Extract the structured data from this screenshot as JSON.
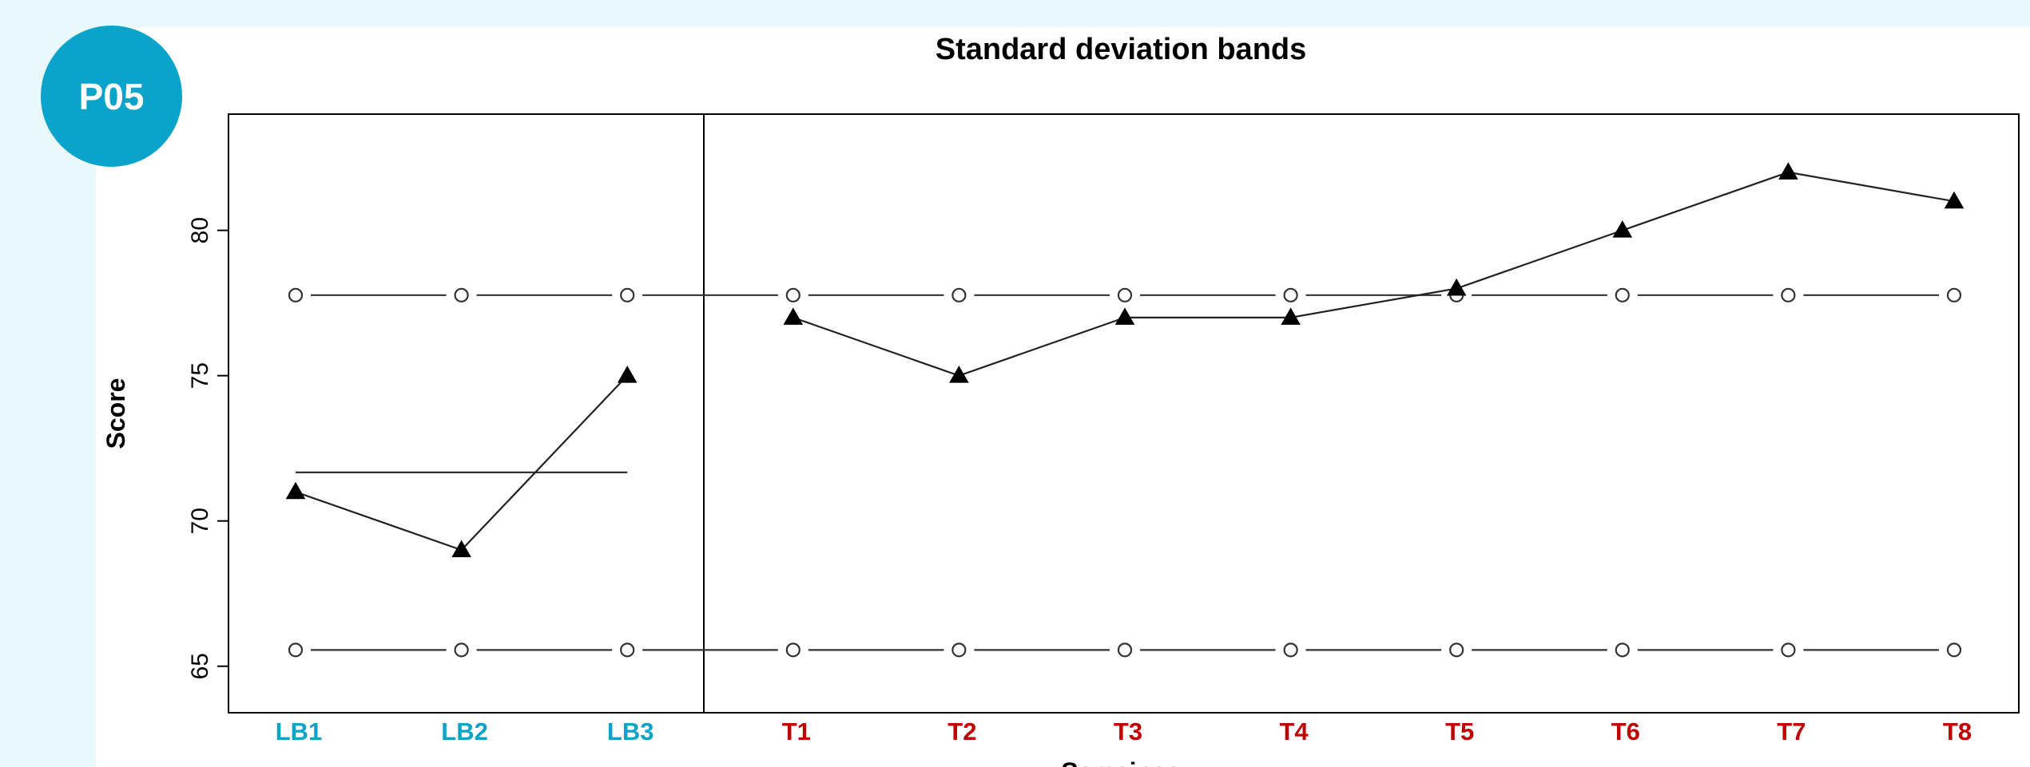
{
  "badge": {
    "label": "P05"
  },
  "chart_data": {
    "type": "line",
    "title": "Standard deviation bands",
    "xlabel": "Semaines",
    "ylabel": "Score",
    "categories": [
      "LB1",
      "LB2",
      "LB3",
      "T1",
      "T2",
      "T3",
      "T4",
      "T5",
      "T6",
      "T7",
      "T8"
    ],
    "phase_colors": {
      "baseline": "#0aa3c9",
      "treatment": "#c00000"
    },
    "baseline_count": 3,
    "ylim": [
      63.4,
      84
    ],
    "yticks": [
      65,
      70,
      75,
      80
    ],
    "series": [
      {
        "values": [
          71,
          69,
          75,
          77,
          75,
          77,
          77,
          78,
          80,
          82,
          81
        ]
      }
    ],
    "baseline_mean": 71.67,
    "sd_bands": {
      "upper": 77.77,
      "lower": 65.56
    },
    "grid": false,
    "legend": "none"
  }
}
